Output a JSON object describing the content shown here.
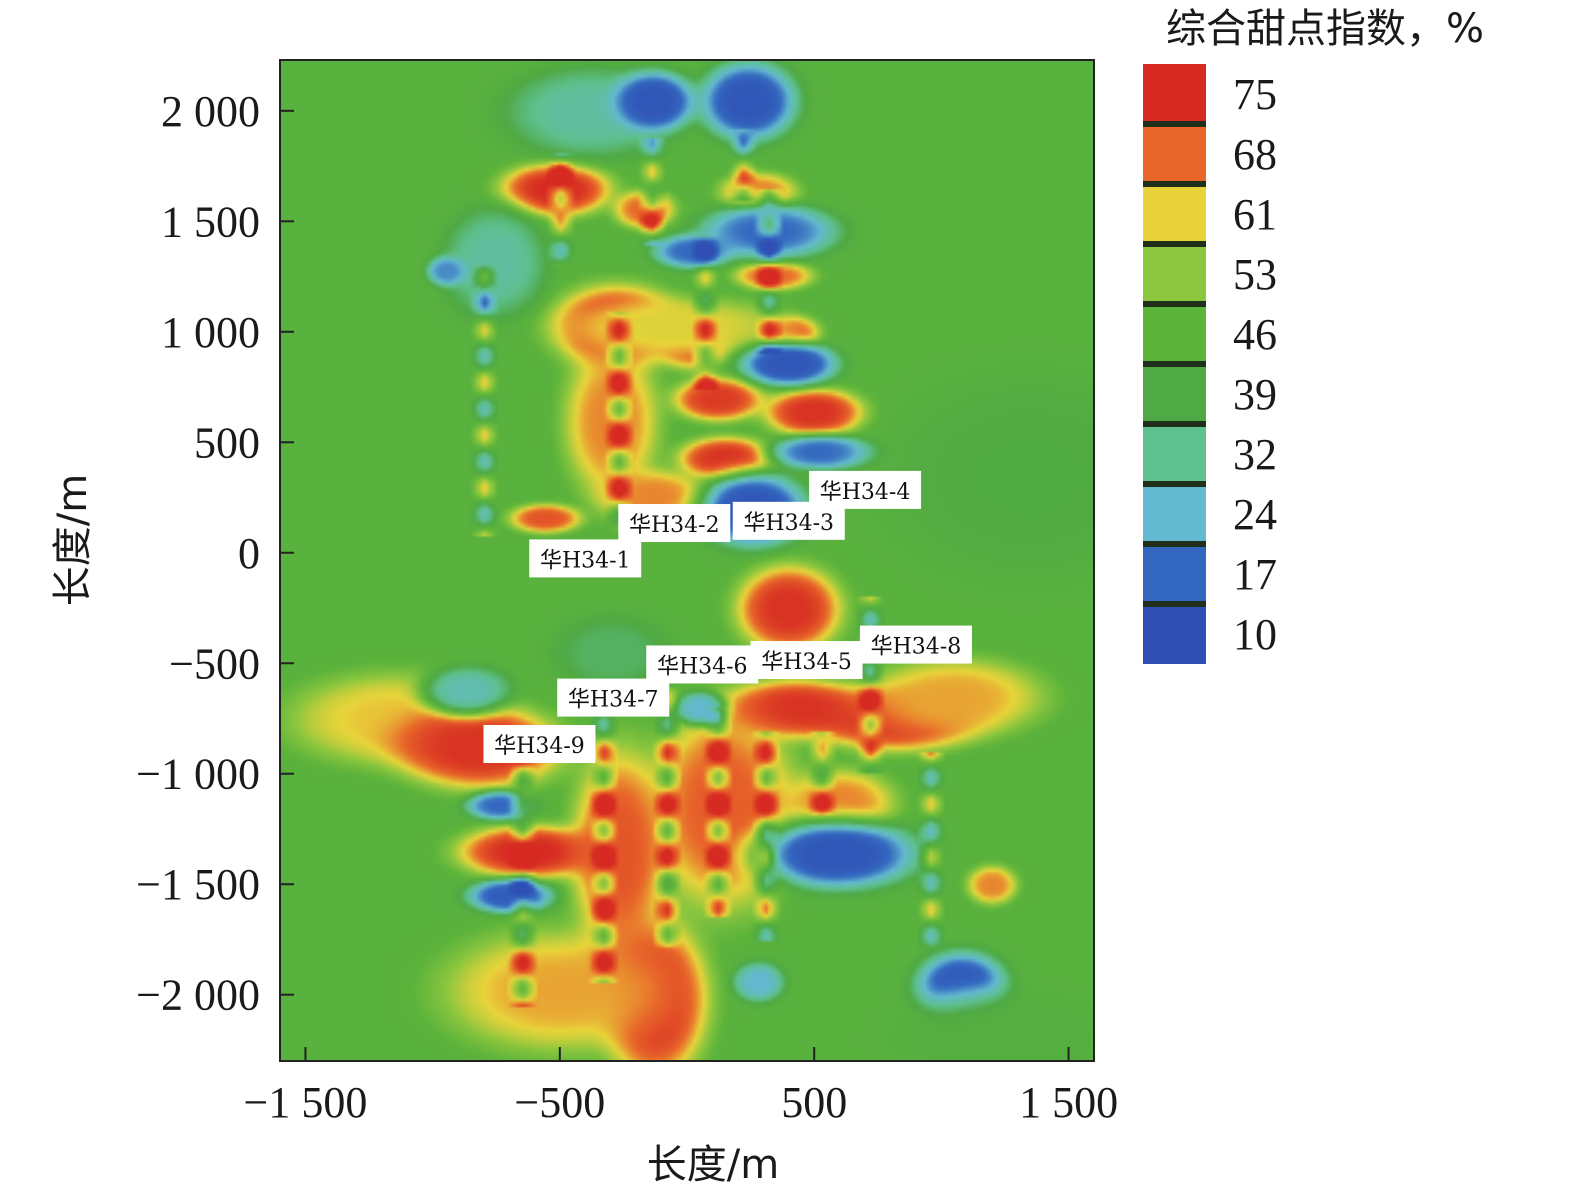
{
  "chart_data": {
    "type": "heatmap",
    "xlabel": "长度/m",
    "ylabel": "长度/m",
    "xlim": [
      -1600,
      1600
    ],
    "ylim": [
      -2300,
      2230
    ],
    "x_ticks": [
      -1500,
      -500,
      500,
      1500
    ],
    "x_tick_labels": [
      "−1 500",
      "−500",
      "500",
      "1 500"
    ],
    "y_ticks": [
      2000,
      1500,
      1000,
      500,
      0,
      -500,
      -1000,
      -1500,
      -2000
    ],
    "y_tick_labels": [
      "2 000",
      "1 500",
      "1 000",
      "500",
      "0",
      "−500",
      "−1 000",
      "−1 500",
      "−2 000"
    ],
    "background_value": 44,
    "colorbar": {
      "title": "综合甜点指数，%",
      "levels": [
        75,
        68,
        61,
        53,
        46,
        39,
        32,
        24,
        17,
        10
      ],
      "colors": [
        "#d62a22",
        "#e8662a",
        "#e8d43a",
        "#8cc63e",
        "#5db43b",
        "#4fa944",
        "#5fc090",
        "#63b9cf",
        "#3468c0",
        "#2f4fb4"
      ],
      "separator_color": "#1f2f1a"
    },
    "wells": [
      {
        "name": "华H34-1",
        "x": -400,
        "y": -30
      },
      {
        "name": "华H34-2",
        "x": -50,
        "y": 130
      },
      {
        "name": "华H34-3",
        "x": 400,
        "y": 140
      },
      {
        "name": "华H34-4",
        "x": 700,
        "y": 280
      },
      {
        "name": "华H34-5",
        "x": 470,
        "y": -490
      },
      {
        "name": "华H34-6",
        "x": 60,
        "y": -510
      },
      {
        "name": "华H34-7",
        "x": -290,
        "y": -660
      },
      {
        "name": "华H34-8",
        "x": 900,
        "y": -420
      },
      {
        "name": "华H34-9",
        "x": -580,
        "y": -870
      }
    ],
    "blobs": [
      {
        "x": -520,
        "y": 1650,
        "rx": 200,
        "ry": 110,
        "v": 75
      },
      {
        "x": -170,
        "y": 1560,
        "rx": 110,
        "ry": 80,
        "v": 68
      },
      {
        "x": -280,
        "y": 1030,
        "rx": 230,
        "ry": 170,
        "v": 75
      },
      {
        "x": 20,
        "y": 960,
        "rx": 130,
        "ry": 110,
        "v": 72
      },
      {
        "x": 120,
        "y": 700,
        "rx": 160,
        "ry": 90,
        "v": 73
      },
      {
        "x": 150,
        "y": 430,
        "rx": 170,
        "ry": 90,
        "v": 74
      },
      {
        "x": -560,
        "y": 160,
        "rx": 130,
        "ry": 60,
        "v": 70
      },
      {
        "x": -130,
        "y": 260,
        "rx": 200,
        "ry": 110,
        "v": 66
      },
      {
        "x": -300,
        "y": 600,
        "rx": 170,
        "ry": 320,
        "v": 66
      },
      {
        "x": 280,
        "y": 1640,
        "rx": 140,
        "ry": 80,
        "v": 66
      },
      {
        "x": 340,
        "y": 1260,
        "rx": 140,
        "ry": 60,
        "v": 68
      },
      {
        "x": 500,
        "y": 640,
        "rx": 180,
        "ry": 100,
        "v": 74
      },
      {
        "x": 410,
        "y": 1000,
        "rx": 100,
        "ry": 70,
        "v": 70
      },
      {
        "x": 400,
        "y": -250,
        "rx": 190,
        "ry": 180,
        "v": 74
      },
      {
        "x": 430,
        "y": -700,
        "rx": 260,
        "ry": 120,
        "v": 74
      },
      {
        "x": 820,
        "y": -750,
        "rx": 300,
        "ry": 130,
        "v": 74
      },
      {
        "x": 1050,
        "y": -650,
        "rx": 320,
        "ry": 160,
        "v": 64
      },
      {
        "x": -1150,
        "y": -750,
        "rx": 380,
        "ry": 190,
        "v": 62
      },
      {
        "x": -820,
        "y": -880,
        "rx": 300,
        "ry": 170,
        "v": 74
      },
      {
        "x": -620,
        "y": -1350,
        "rx": 260,
        "ry": 110,
        "v": 75
      },
      {
        "x": -130,
        "y": -2020,
        "rx": 190,
        "ry": 330,
        "v": 75
      },
      {
        "x": -500,
        "y": -1980,
        "rx": 420,
        "ry": 250,
        "v": 64
      },
      {
        "x": -270,
        "y": -1350,
        "rx": 170,
        "ry": 430,
        "v": 70
      },
      {
        "x": 140,
        "y": -1150,
        "rx": 260,
        "ry": 420,
        "v": 69
      },
      {
        "x": 600,
        "y": -1130,
        "rx": 200,
        "ry": 140,
        "v": 66
      },
      {
        "x": 1200,
        "y": -1500,
        "rx": 90,
        "ry": 80,
        "v": 66
      },
      {
        "x": -40,
        "y": 1030,
        "rx": 400,
        "ry": 120,
        "v": 60
      },
      {
        "x": -760,
        "y": 1320,
        "rx": 180,
        "ry": 220,
        "v": 30
      },
      {
        "x": -380,
        "y": 2000,
        "rx": 300,
        "ry": 180,
        "v": 30
      },
      {
        "x": -300,
        "y": -450,
        "rx": 200,
        "ry": 150,
        "v": 36
      },
      {
        "x": -870,
        "y": -620,
        "rx": 160,
        "ry": 100,
        "v": 28
      },
      {
        "x": -130,
        "y": 2050,
        "rx": 140,
        "ry": 120,
        "v": 12
      },
      {
        "x": 240,
        "y": 2050,
        "rx": 170,
        "ry": 160,
        "v": 12
      },
      {
        "x": 320,
        "y": 1460,
        "rx": 240,
        "ry": 110,
        "v": 17
      },
      {
        "x": 20,
        "y": 1370,
        "rx": 140,
        "ry": 70,
        "v": 17
      },
      {
        "x": 400,
        "y": 860,
        "rx": 170,
        "ry": 90,
        "v": 12
      },
      {
        "x": 530,
        "y": 460,
        "rx": 180,
        "ry": 70,
        "v": 17
      },
      {
        "x": 260,
        "y": 200,
        "rx": 190,
        "ry": 150,
        "v": 12
      },
      {
        "x": -950,
        "y": 1280,
        "rx": 70,
        "ry": 60,
        "v": 20
      },
      {
        "x": 590,
        "y": -1360,
        "rx": 280,
        "ry": 140,
        "v": 12
      },
      {
        "x": 1080,
        "y": -1960,
        "rx": 160,
        "ry": 140,
        "v": 12
      },
      {
        "x": -700,
        "y": -1550,
        "rx": 150,
        "ry": 70,
        "v": 14
      },
      {
        "x": -740,
        "y": -1140,
        "rx": 120,
        "ry": 60,
        "v": 17
      },
      {
        "x": 50,
        "y": -700,
        "rx": 90,
        "ry": 70,
        "v": 24
      },
      {
        "x": 280,
        "y": -1940,
        "rx": 90,
        "ry": 80,
        "v": 24
      },
      {
        "x": 1350,
        "y": 350,
        "rx": 500,
        "ry": 400,
        "v": 40
      },
      {
        "x": 1250,
        "y": -2200,
        "rx": 400,
        "ry": 200,
        "v": 42
      }
    ],
    "well_lines": [
      {
        "x": -800,
        "y0": 1320,
        "y1": 80
      },
      {
        "x": -500,
        "y0": 1820,
        "y1": 1300
      },
      {
        "x": -270,
        "y0": 1100,
        "y1": 100
      },
      {
        "x": -140,
        "y0": 1890,
        "y1": 1400
      },
      {
        "x": 70,
        "y0": 1450,
        "y1": 750
      },
      {
        "x": 220,
        "y0": 1920,
        "y1": 1600
      },
      {
        "x": 320,
        "y0": 1650,
        "y1": 900
      },
      {
        "x": -650,
        "y0": -800,
        "y1": -2050
      },
      {
        "x": -330,
        "y0": -600,
        "y1": -1950
      },
      {
        "x": -80,
        "y0": -530,
        "y1": -1800
      },
      {
        "x": 120,
        "y0": -700,
        "y1": -1650
      },
      {
        "x": 310,
        "y0": -800,
        "y1": -1750
      },
      {
        "x": 530,
        "y0": -800,
        "y1": -1200
      },
      {
        "x": 720,
        "y0": -200,
        "y1": -1000
      },
      {
        "x": 960,
        "y0": -900,
        "y1": -1800
      }
    ]
  }
}
